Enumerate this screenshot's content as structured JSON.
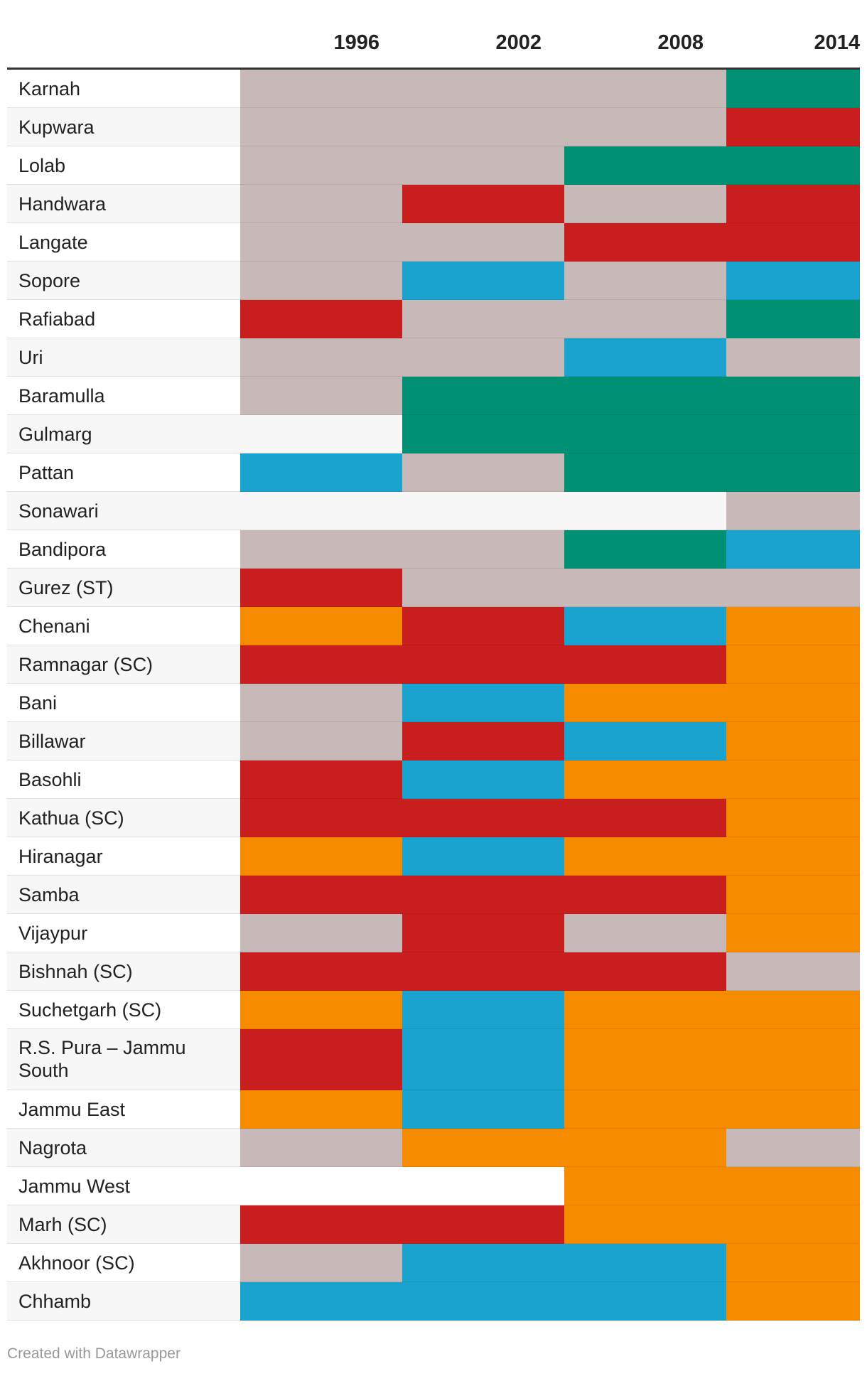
{
  "chart_data": {
    "type": "heatmap",
    "columns": [
      "1996",
      "2002",
      "2008",
      "2014"
    ],
    "colors": {
      "grey": "#c6b9b8",
      "green": "#009175",
      "red": "#c81e1e",
      "blue": "#1aa3ce",
      "orange": "#f78b00",
      "none": "none"
    },
    "rows": [
      {
        "name": "Karnah",
        "values": [
          "grey",
          "grey",
          "grey",
          "green"
        ]
      },
      {
        "name": "Kupwara",
        "values": [
          "grey",
          "grey",
          "grey",
          "red"
        ]
      },
      {
        "name": "Lolab",
        "values": [
          "grey",
          "grey",
          "green",
          "green"
        ]
      },
      {
        "name": "Handwara",
        "values": [
          "grey",
          "red",
          "grey",
          "red"
        ]
      },
      {
        "name": "Langate",
        "values": [
          "grey",
          "grey",
          "red",
          "red"
        ]
      },
      {
        "name": "Sopore",
        "values": [
          "grey",
          "blue",
          "grey",
          "blue"
        ]
      },
      {
        "name": "Rafiabad",
        "values": [
          "red",
          "grey",
          "grey",
          "green"
        ]
      },
      {
        "name": "Uri",
        "values": [
          "grey",
          "grey",
          "blue",
          "grey"
        ]
      },
      {
        "name": "Baramulla",
        "values": [
          "grey",
          "green",
          "green",
          "green"
        ]
      },
      {
        "name": "Gulmarg",
        "values": [
          "none",
          "green",
          "green",
          "green"
        ]
      },
      {
        "name": "Pattan",
        "values": [
          "blue",
          "grey",
          "green",
          "green"
        ]
      },
      {
        "name": "Sonawari",
        "values": [
          "none",
          "none",
          "none",
          "grey"
        ]
      },
      {
        "name": "Bandipora",
        "values": [
          "grey",
          "grey",
          "green",
          "blue"
        ]
      },
      {
        "name": "Gurez (ST)",
        "values": [
          "red",
          "grey",
          "grey",
          "grey"
        ]
      },
      {
        "name": "Chenani",
        "values": [
          "orange",
          "red",
          "blue",
          "orange"
        ]
      },
      {
        "name": "Ramnagar (SC)",
        "values": [
          "red",
          "red",
          "red",
          "orange"
        ]
      },
      {
        "name": "Bani",
        "values": [
          "grey",
          "blue",
          "orange",
          "orange"
        ]
      },
      {
        "name": "Billawar",
        "values": [
          "grey",
          "red",
          "blue",
          "orange"
        ]
      },
      {
        "name": "Basohli",
        "values": [
          "red",
          "blue",
          "orange",
          "orange"
        ]
      },
      {
        "name": "Kathua (SC)",
        "values": [
          "red",
          "red",
          "red",
          "orange"
        ]
      },
      {
        "name": "Hiranagar",
        "values": [
          "orange",
          "blue",
          "orange",
          "orange"
        ]
      },
      {
        "name": "Samba",
        "values": [
          "red",
          "red",
          "red",
          "orange"
        ]
      },
      {
        "name": "Vijaypur",
        "values": [
          "grey",
          "red",
          "grey",
          "orange"
        ]
      },
      {
        "name": "Bishnah (SC)",
        "values": [
          "red",
          "red",
          "red",
          "grey"
        ]
      },
      {
        "name": "Suchetgarh (SC)",
        "values": [
          "orange",
          "blue",
          "orange",
          "orange"
        ]
      },
      {
        "name": "R.S. Pura – Jammu South",
        "values": [
          "red",
          "blue",
          "orange",
          "orange"
        ]
      },
      {
        "name": "Jammu East",
        "values": [
          "orange",
          "blue",
          "orange",
          "orange"
        ]
      },
      {
        "name": "Nagrota",
        "values": [
          "grey",
          "orange",
          "orange",
          "grey"
        ]
      },
      {
        "name": "Jammu West",
        "values": [
          "none",
          "none",
          "orange",
          "orange"
        ]
      },
      {
        "name": "Marh (SC)",
        "values": [
          "red",
          "red",
          "orange",
          "orange"
        ]
      },
      {
        "name": "Akhnoor (SC)",
        "values": [
          "grey",
          "blue",
          "blue",
          "orange"
        ]
      },
      {
        "name": "Chhamb",
        "values": [
          "blue",
          "blue",
          "blue",
          "orange"
        ]
      }
    ]
  },
  "footer": {
    "text": "Created with Datawrapper"
  }
}
